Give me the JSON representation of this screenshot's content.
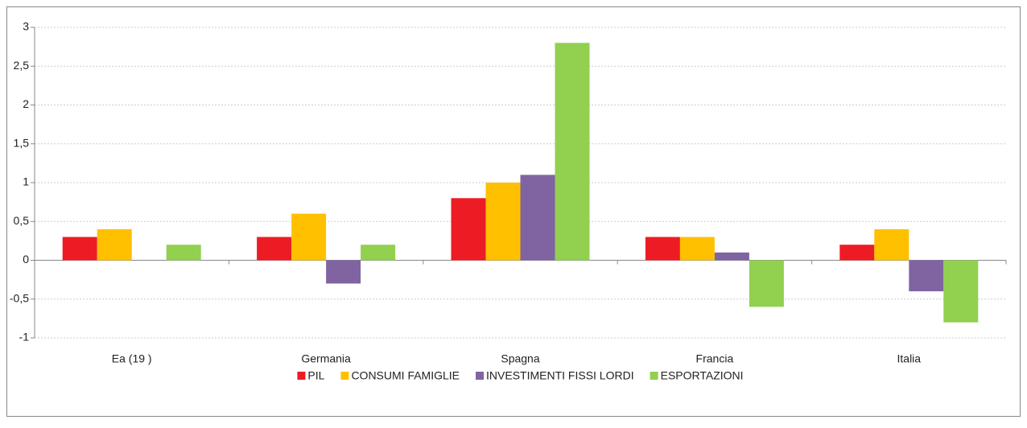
{
  "chart_data": {
    "type": "bar",
    "categories": [
      "Ea (19 )",
      "Germania",
      "Spagna",
      "Francia",
      "Italia"
    ],
    "series": [
      {
        "name": "PIL",
        "color": "#ed1c24",
        "values": [
          0.3,
          0.3,
          0.8,
          0.3,
          0.2
        ]
      },
      {
        "name": "CONSUMI FAMIGLIE",
        "color": "#ffc000",
        "values": [
          0.4,
          0.6,
          1.0,
          0.3,
          0.4
        ]
      },
      {
        "name": "INVESTIMENTI FISSI LORDI",
        "color": "#8064a2",
        "values": [
          0,
          -0.3,
          1.1,
          0.1,
          -0.4
        ]
      },
      {
        "name": "ESPORTAZIONI",
        "color": "#92d050",
        "values": [
          0.2,
          0.2,
          2.8,
          -0.6,
          -0.8
        ]
      }
    ],
    "ylim": [
      -1,
      3
    ],
    "yticks": [
      -1,
      {
        "value": -0.5,
        "label": "-0,5"
      },
      0,
      {
        "value": 0.5,
        "label": "0,5"
      },
      1,
      {
        "value": 1.5,
        "label": "1,5"
      },
      2,
      {
        "value": 2.5,
        "label": "2,5"
      },
      3
    ],
    "grid": true,
    "legend": "bottom"
  }
}
